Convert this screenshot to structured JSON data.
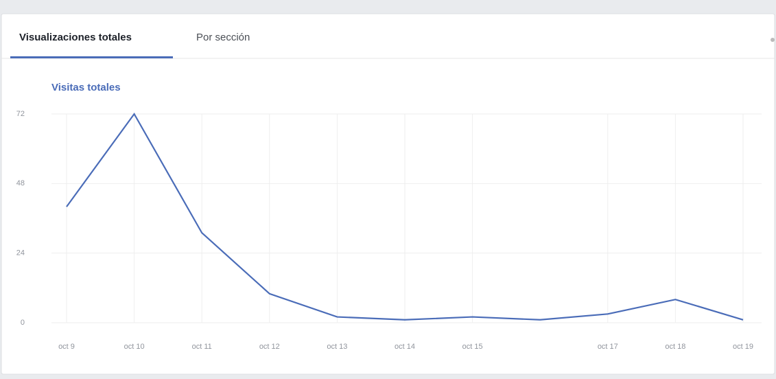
{
  "tabs": [
    "Visualizaciones totales",
    "Por sección"
  ],
  "chart_data": {
    "type": "line",
    "title": "Visitas totales",
    "categories": [
      "oct 9",
      "oct 10",
      "oct 11",
      "oct 12",
      "oct 13",
      "oct 14",
      "oct 15",
      null,
      "oct 17",
      "oct 18",
      "oct 19"
    ],
    "series": [
      {
        "color": "#4a6cb8",
        "values": [
          40,
          72,
          31,
          10,
          2,
          1,
          2,
          1,
          3,
          8,
          1
        ]
      }
    ],
    "ylim": [
      0,
      72
    ],
    "yticks": [
      0,
      24,
      48,
      72
    ],
    "grid": true
  }
}
